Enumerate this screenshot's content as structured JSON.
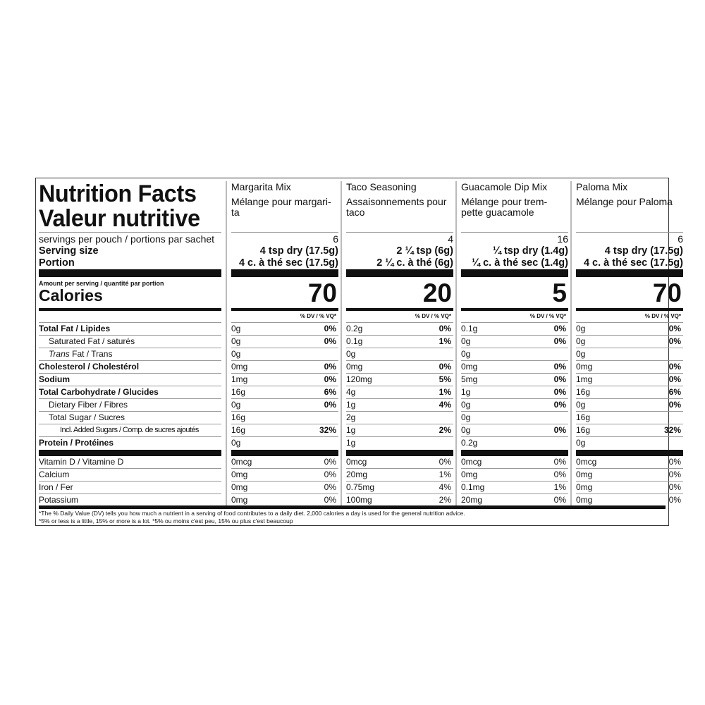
{
  "title_en": "Nutrition Facts",
  "title_fr": "Valeur nutritive",
  "servings_label": "servings per pouch / portions par sachet",
  "serving_size_label": "Serving size",
  "portion_label": "Portion",
  "amount_label": "Amount per serving / quantité par portion",
  "calories_label": "Calories",
  "dv_label": "% DV / % VQ*",
  "nutrient_rows": [
    {
      "label": "Total Fat / Lipides",
      "style": "b"
    },
    {
      "label": "Saturated Fat / saturés",
      "style": "i1"
    },
    {
      "label_italic": "Trans",
      "label": " Fat / Trans",
      "style": "i1"
    },
    {
      "label": "Cholesterol / Cholestérol",
      "style": "b"
    },
    {
      "label": "Sodium",
      "style": "b"
    },
    {
      "label": "Total Carbohydrate / Glucides",
      "style": "b"
    },
    {
      "label": "Dietary Fiber / Fibres",
      "style": "i1"
    },
    {
      "label": "Total Sugar / Sucres",
      "style": "i1"
    },
    {
      "label": "Incl. Added Sugars / Comp. de sucres ajoutés",
      "style": "i2"
    },
    {
      "label": "Protein / Protéines",
      "style": "b"
    }
  ],
  "vitamin_rows": [
    "Vitamin D / Vitamine D",
    "Calcium",
    "Iron / Fer",
    "Potassium"
  ],
  "products": [
    {
      "name_en": "Margarita Mix",
      "name_fr": "Mélange pour margari-ta",
      "servings": "6",
      "serving_size": "4 tsp dry (17.5g)",
      "portion": "4 c. à thé sec (17.5g)",
      "calories": "70",
      "nutrients": [
        [
          "0g",
          "0%"
        ],
        [
          "0g",
          "0%"
        ],
        [
          "0g",
          ""
        ],
        [
          "0mg",
          "0%"
        ],
        [
          "1mg",
          "0%"
        ],
        [
          "16g",
          "6%"
        ],
        [
          "0g",
          "0%"
        ],
        [
          "16g",
          ""
        ],
        [
          "16g",
          "32%"
        ],
        [
          "0g",
          ""
        ]
      ],
      "vitamins": [
        [
          "0mcg",
          "0%"
        ],
        [
          "0mg",
          "0%"
        ],
        [
          "0mg",
          "0%"
        ],
        [
          "0mg",
          "0%"
        ]
      ]
    },
    {
      "name_en": "Taco Seasoning",
      "name_fr": "Assaisonnements pour taco",
      "servings": "4",
      "serving_size": "2 ¼ tsp (6g)",
      "portion": "2 ¼ c. à thé (6g)",
      "calories": "20",
      "nutrients": [
        [
          "0.2g",
          "0%"
        ],
        [
          "0.1g",
          "1%"
        ],
        [
          "0g",
          ""
        ],
        [
          "0mg",
          "0%"
        ],
        [
          "120mg",
          "5%"
        ],
        [
          "4g",
          "1%"
        ],
        [
          "1g",
          "4%"
        ],
        [
          "2g",
          ""
        ],
        [
          "1g",
          "2%"
        ],
        [
          "1g",
          ""
        ]
      ],
      "vitamins": [
        [
          "0mcg",
          "0%"
        ],
        [
          "20mg",
          "1%"
        ],
        [
          "0.75mg",
          "4%"
        ],
        [
          "100mg",
          "2%"
        ]
      ]
    },
    {
      "name_en": "Guacamole Dip Mix",
      "name_fr": "Mélange pour trem-pette guacamole",
      "servings": "16",
      "serving_size": "¼ tsp dry (1.4g)",
      "portion": "¼ c. à thé sec (1.4g)",
      "calories": "5",
      "nutrients": [
        [
          "0.1g",
          "0%"
        ],
        [
          "0g",
          "0%"
        ],
        [
          "0g",
          ""
        ],
        [
          "0mg",
          "0%"
        ],
        [
          "5mg",
          "0%"
        ],
        [
          "1g",
          "0%"
        ],
        [
          "0g",
          "0%"
        ],
        [
          "0g",
          ""
        ],
        [
          "0g",
          "0%"
        ],
        [
          "0.2g",
          ""
        ]
      ],
      "vitamins": [
        [
          "0mcg",
          "0%"
        ],
        [
          "0mg",
          "0%"
        ],
        [
          "0.1mg",
          "1%"
        ],
        [
          "20mg",
          "0%"
        ]
      ]
    },
    {
      "name_en": "Paloma Mix",
      "name_fr": "Mélange pour Paloma",
      "servings": "6",
      "serving_size": "4 tsp dry (17.5g)",
      "portion": "4 c. à thé sec (17.5g)",
      "calories": "70",
      "nutrients": [
        [
          "0g",
          "0%"
        ],
        [
          "0g",
          "0%"
        ],
        [
          "0g",
          ""
        ],
        [
          "0mg",
          "0%"
        ],
        [
          "1mg",
          "0%"
        ],
        [
          "16g",
          "6%"
        ],
        [
          "0g",
          "0%"
        ],
        [
          "16g",
          ""
        ],
        [
          "16g",
          "32%"
        ],
        [
          "0g",
          ""
        ]
      ],
      "vitamins": [
        [
          "0mcg",
          "0%"
        ],
        [
          "0mg",
          "0%"
        ],
        [
          "0mg",
          "0%"
        ],
        [
          "0mg",
          "0%"
        ]
      ]
    }
  ],
  "footnote_1": "*The % Daily Value (DV) tells you how much a nutrient in a serving of food contributes to a daily diet. 2,000 calories a day is used for the general nutrition advice.",
  "footnote_2": "*5% or less is a little, 15% or more is a lot. *5% ou moins c'est peu, 15% ou plus c'est beaucoup"
}
